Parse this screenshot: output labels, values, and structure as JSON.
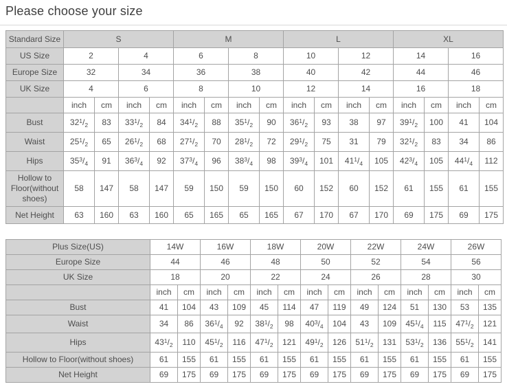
{
  "page": {
    "title": "Please choose your size"
  },
  "units": {
    "inch": "inch",
    "cm": "cm"
  },
  "colors": {
    "header_bg": "#d3d3d3",
    "border": "#a3a3a3",
    "text": "#4d4d4d"
  },
  "standard_chart": {
    "group_header": {
      "label": "Standard Size",
      "groups": [
        "S",
        "M",
        "L",
        "XL"
      ]
    },
    "size_rows": [
      {
        "label": "US Size",
        "values": [
          "2",
          "4",
          "6",
          "8",
          "10",
          "12",
          "14",
          "16"
        ]
      },
      {
        "label": "Europe Size",
        "values": [
          "32",
          "34",
          "36",
          "38",
          "40",
          "42",
          "44",
          "46"
        ]
      },
      {
        "label": "UK Size",
        "values": [
          "4",
          "6",
          "8",
          "10",
          "12",
          "14",
          "16",
          "18"
        ]
      }
    ],
    "measurement_rows": [
      {
        "label": "Bust",
        "values": [
          "32 1/2",
          "83",
          "33 1/2",
          "84",
          "34 1/2",
          "88",
          "35 1/2",
          "90",
          "36 1/2",
          "93",
          "38",
          "97",
          "39 1/2",
          "100",
          "41",
          "104"
        ]
      },
      {
        "label": "Waist",
        "values": [
          "25 1/2",
          "65",
          "26 1/2",
          "68",
          "27 1/2",
          "70",
          "28 1/2",
          "72",
          "29 1/2",
          "75",
          "31",
          "79",
          "32 1/2",
          "83",
          "34",
          "86"
        ]
      },
      {
        "label": "Hips",
        "values": [
          "35 3/4",
          "91",
          "36 3/4",
          "92",
          "37 3/4",
          "96",
          "38 3/4",
          "98",
          "39 3/4",
          "101",
          "41 1/4",
          "105",
          "42 3/4",
          "105",
          "44 1/4",
          "112"
        ]
      },
      {
        "label": "Hollow to Floor(without shoes)",
        "values": [
          "58",
          "147",
          "58",
          "147",
          "59",
          "150",
          "59",
          "150",
          "60",
          "152",
          "60",
          "152",
          "61",
          "155",
          "61",
          "155"
        ]
      },
      {
        "label": "Net Height",
        "values": [
          "63",
          "160",
          "63",
          "160",
          "65",
          "165",
          "65",
          "165",
          "67",
          "170",
          "67",
          "170",
          "69",
          "175",
          "69",
          "175"
        ]
      }
    ]
  },
  "plus_chart": {
    "size_rows": [
      {
        "label": "Plus Size(US)",
        "values": [
          "14W",
          "16W",
          "18W",
          "20W",
          "22W",
          "24W",
          "26W"
        ]
      },
      {
        "label": "Europe Size",
        "values": [
          "44",
          "46",
          "48",
          "50",
          "52",
          "54",
          "56"
        ]
      },
      {
        "label": "UK Size",
        "values": [
          "18",
          "20",
          "22",
          "24",
          "26",
          "28",
          "30"
        ]
      }
    ],
    "measurement_rows": [
      {
        "label": "Bust",
        "values": [
          "41",
          "104",
          "43",
          "109",
          "45",
          "114",
          "47",
          "119",
          "49",
          "124",
          "51",
          "130",
          "53",
          "135"
        ]
      },
      {
        "label": "Waist",
        "values": [
          "34",
          "86",
          "36 1/4",
          "92",
          "38 1/2",
          "98",
          "40 3/4",
          "104",
          "43",
          "109",
          "45 1/4",
          "115",
          "47 1/2",
          "121"
        ]
      },
      {
        "label": "Hips",
        "values": [
          "43 1/2",
          "110",
          "45 1/2",
          "116",
          "47 1/2",
          "121",
          "49 1/2",
          "126",
          "51 1/2",
          "131",
          "53 1/2",
          "136",
          "55 1/2",
          "141"
        ]
      },
      {
        "label": "Hollow to Floor(without shoes)",
        "values": [
          "61",
          "155",
          "61",
          "155",
          "61",
          "155",
          "61",
          "155",
          "61",
          "155",
          "61",
          "155",
          "61",
          "155"
        ]
      },
      {
        "label": "Net Height",
        "values": [
          "69",
          "175",
          "69",
          "175",
          "69",
          "175",
          "69",
          "175",
          "69",
          "175",
          "69",
          "175",
          "69",
          "175"
        ]
      }
    ]
  }
}
